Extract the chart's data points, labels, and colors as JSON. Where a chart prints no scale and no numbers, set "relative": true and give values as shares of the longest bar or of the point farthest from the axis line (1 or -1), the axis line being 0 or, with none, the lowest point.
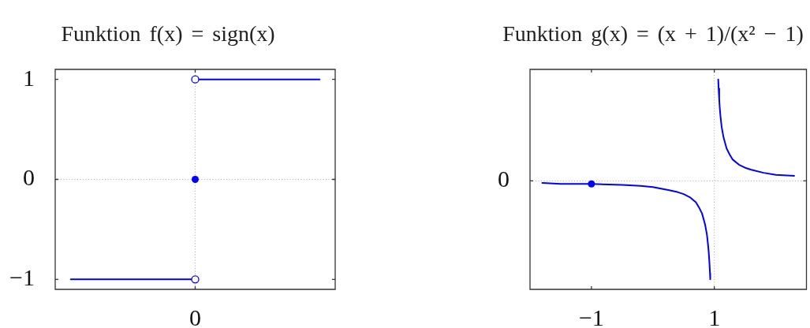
{
  "chart_data": [
    {
      "type": "line",
      "title": "Funktion f(x) = sign(x)",
      "categories": [
        null,
        null,
        null,
        null,
        "0",
        null,
        null,
        null,
        null
      ],
      "ylim": [
        -1.1,
        1.1
      ],
      "yticks": [
        {
          "value": -1,
          "label": "−1"
        },
        0,
        1
      ],
      "series": [
        {
          "color": "#0000ff",
          "marker": "none",
          "values": [
            -1,
            -1,
            -1,
            -1,
            -1,
            null,
            null,
            null,
            null
          ]
        },
        {
          "color": "#0000ff",
          "marker": "none",
          "values": [
            null,
            null,
            null,
            null,
            1,
            1,
            1,
            1,
            1
          ]
        },
        {
          "type": "scatter",
          "color": "#0000ff",
          "marker": "circle",
          "x": [
            "0"
          ],
          "values": [
            0
          ]
        },
        {
          "type": "scatter",
          "color": "#0000ff",
          "colors": [
            "#ffffff",
            "#ffffff"
          ],
          "marker": "circle",
          "x": [
            "0",
            "0"
          ],
          "values": [
            -1,
            1
          ]
        }
      ],
      "ref_lines": [
        {
          "axis": "x",
          "value": "0",
          "color": "#aaaaaa",
          "line_style": "dotted"
        },
        {
          "axis": "y",
          "value": 0,
          "color": "#aaaaaa",
          "line_style": "dotted"
        }
      ]
    },
    {
      "type": "line",
      "title": "Funktion g(x) = (x + 1)/(x² − 1)",
      "relative": true,
      "xlim": [
        -2,
        2.5
      ],
      "xticks": [
        {
          "value": -1,
          "label": "−1"
        },
        1
      ],
      "series": [
        {
          "color": "#0000ff",
          "marker": "none",
          "x": [
            -1.8,
            -1.5,
            -1.2,
            -1,
            -0.5,
            -0.2,
            0,
            0.25,
            0.4,
            0.5,
            0.6,
            0.7,
            0.75,
            0.8,
            0.85,
            0.88,
            0.9,
            0.91,
            0.92,
            0.93,
            0.934
          ],
          "values": [
            -0.02,
            -0.03,
            -0.03,
            -0.03,
            -0.04,
            -0.05,
            -0.06,
            -0.09,
            -0.11,
            -0.13,
            -0.16,
            -0.21,
            -0.26,
            -0.32,
            -0.43,
            -0.53,
            -0.64,
            -0.71,
            -0.8,
            -0.91,
            -0.97
          ]
        },
        {
          "color": "#0000ff",
          "marker": "none",
          "x": [
            1.064,
            1.07,
            1.08,
            1.09,
            1.1,
            1.12,
            1.15,
            1.2,
            1.25,
            1.3,
            1.4,
            1.5,
            1.6,
            1.8,
            2,
            2.3
          ],
          "values": [
            1,
            0.91,
            0.8,
            0.71,
            0.64,
            0.53,
            0.43,
            0.32,
            0.26,
            0.21,
            0.16,
            0.13,
            0.11,
            0.08,
            0.06,
            0.05
          ]
        },
        {
          "type": "scatter",
          "color": "#0000ff",
          "marker": "circle",
          "x": [
            -1
          ],
          "values": [
            -0.03
          ]
        }
      ],
      "ref_lines": [
        {
          "axis": "x",
          "value": 1,
          "color": "#aaaaaa",
          "line_style": "dotted"
        },
        {
          "axis": "y",
          "value": 0,
          "label": "0",
          "color": "#aaaaaa",
          "line_style": "dotted"
        }
      ]
    }
  ]
}
